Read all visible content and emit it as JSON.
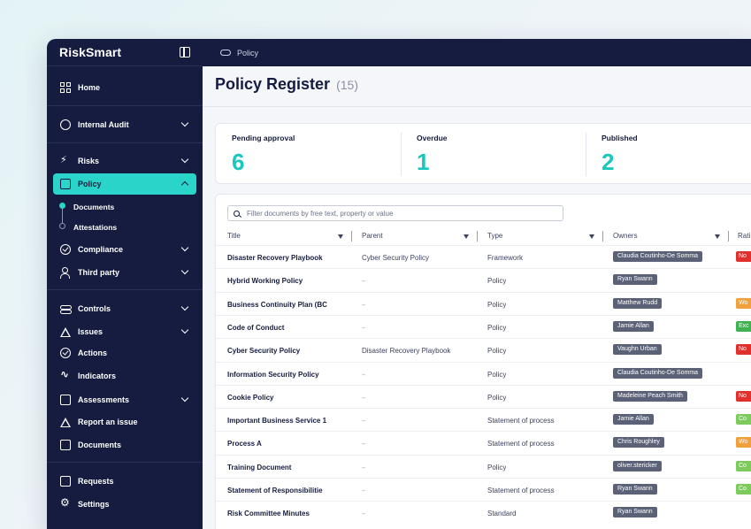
{
  "app": {
    "brand": "RiskSmart"
  },
  "breadcrumb": {
    "label": "Policy"
  },
  "sidebar": {
    "items": [
      {
        "label": "Home"
      },
      {
        "label": "Internal Audit"
      },
      {
        "label": "Risks"
      },
      {
        "label": "Policy"
      },
      {
        "label": "Compliance"
      },
      {
        "label": "Third party"
      },
      {
        "label": "Controls"
      },
      {
        "label": "Issues"
      },
      {
        "label": "Actions"
      },
      {
        "label": "Indicators"
      },
      {
        "label": "Assessments"
      },
      {
        "label": "Report an issue"
      },
      {
        "label": "Documents"
      },
      {
        "label": "Requests"
      },
      {
        "label": "Settings"
      }
    ],
    "policy_sub": [
      {
        "label": "Documents"
      },
      {
        "label": "Attestations"
      }
    ]
  },
  "page": {
    "title": "Policy Register",
    "count": "(15)"
  },
  "stats": [
    {
      "label": "Pending approval",
      "value": "6"
    },
    {
      "label": "Overdue",
      "value": "1"
    },
    {
      "label": "Published",
      "value": "2"
    }
  ],
  "search": {
    "placeholder": "Filter documents by free text, property or value"
  },
  "table": {
    "headers": [
      "Title",
      "Parent",
      "Type",
      "Owners",
      "Rati"
    ],
    "rows": [
      {
        "title": "Disaster Recovery Playbook",
        "parent": "Cyber Security Policy",
        "type": "Framework",
        "owner": "Claudia Coutinho-De Somma",
        "rating": "No",
        "rating_color": "#e0302b"
      },
      {
        "title": "Hybrid Working Policy",
        "parent": "–",
        "type": "Policy",
        "owner": "Ryan Swann",
        "rating": "",
        "rating_color": ""
      },
      {
        "title": "Business Continuity Plan (BC",
        "parent": "–",
        "type": "Policy",
        "owner": "Matthew Rudd",
        "rating": "Wo",
        "rating_color": "#f0a13b"
      },
      {
        "title": "Code of Conduct",
        "parent": "–",
        "type": "Policy",
        "owner": "Jamie Allan",
        "rating": "Exc",
        "rating_color": "#3fb34f"
      },
      {
        "title": "Cyber Security Policy",
        "parent": "Disaster Recovery Playbook",
        "type": "Policy",
        "owner": "Vaughn Urban",
        "rating": "No",
        "rating_color": "#e0302b"
      },
      {
        "title": "Information Security Policy",
        "parent": "–",
        "type": "Policy",
        "owner": "Claudia Coutinho-De Somma",
        "rating": "",
        "rating_color": ""
      },
      {
        "title": "Cookie Policy",
        "parent": "–",
        "type": "Policy",
        "owner": "Madeleine Peach Smith",
        "rating": "No",
        "rating_color": "#e0302b"
      },
      {
        "title": "Important Business Service 1",
        "parent": "–",
        "type": "Statement of process",
        "owner": "Jamie Allan",
        "rating": "Co",
        "rating_color": "#7ccb5c"
      },
      {
        "title": "Process A",
        "parent": "–",
        "type": "Statement of process",
        "owner": "Chris Roughley",
        "rating": "Wo",
        "rating_color": "#f0a13b"
      },
      {
        "title": "Training Document",
        "parent": "–",
        "type": "Policy",
        "owner": "oliver.stericker",
        "rating": "Co",
        "rating_color": "#7ccb5c"
      },
      {
        "title": "Statement of Responsibilitie",
        "parent": "–",
        "type": "Statement of process",
        "owner": "Ryan Swann",
        "rating": "Co",
        "rating_color": "#7ccb5c"
      },
      {
        "title": "Risk Committee Minutes",
        "parent": "–",
        "type": "Standard",
        "owner": "Ryan Swann",
        "rating": "",
        "rating_color": ""
      }
    ]
  },
  "colors": {
    "sidebar": "#161c3f",
    "accent": "#2ad4c8",
    "stat_value": "#19c8bd"
  }
}
